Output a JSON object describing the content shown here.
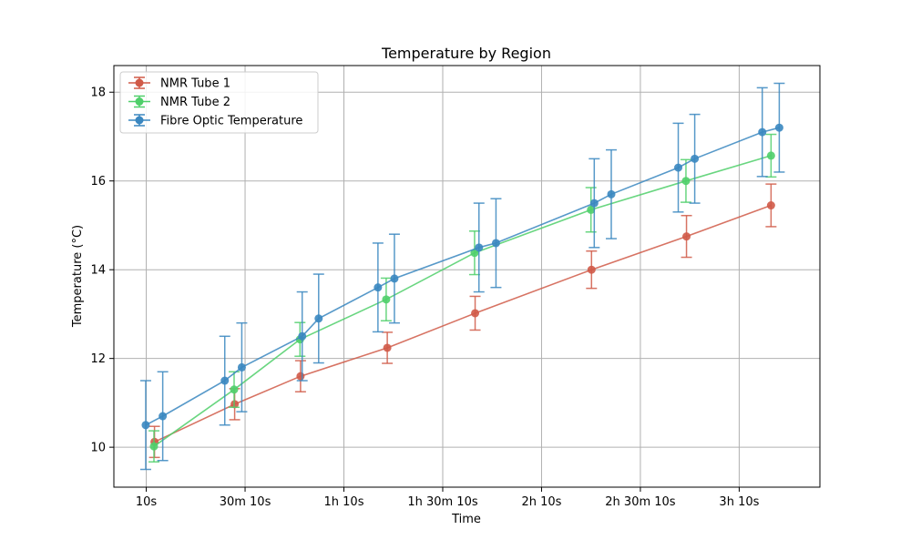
{
  "chart_data": {
    "type": "line",
    "title": "Temperature by Region",
    "xlabel": "Time",
    "ylabel": "Temperature (°C)",
    "x_ticks": [
      {
        "label": "10s",
        "t": 10
      },
      {
        "label": "30m 10s",
        "t": 1810
      },
      {
        "label": "1h 10s",
        "t": 3610
      },
      {
        "label": "1h 30m 10s",
        "t": 5410
      },
      {
        "label": "2h 10s",
        "t": 7210
      },
      {
        "label": "2h 30m 10s",
        "t": 9010
      },
      {
        "label": "3h 10s",
        "t": 10810
      }
    ],
    "y_ticks": [
      10,
      12,
      14,
      16,
      18
    ],
    "xlim": [
      -580,
      12280
    ],
    "ylim": [
      9.1,
      18.6
    ],
    "grid": true,
    "legend_position": "upper-left",
    "series": [
      {
        "name": "NMR Tube 1",
        "color": "#d05a48",
        "x": [
          160,
          1620,
          2820,
          4400,
          6000,
          8120,
          9850,
          11390
        ],
        "y": [
          10.12,
          10.97,
          11.6,
          12.24,
          13.02,
          14.0,
          14.75,
          15.45
        ],
        "err": [
          0.35,
          0.35,
          0.35,
          0.35,
          0.38,
          0.42,
          0.47,
          0.48
        ]
      },
      {
        "name": "NMR Tube 2",
        "color": "#4fcf6a",
        "x": [
          150,
          1610,
          2810,
          4380,
          5990,
          8110,
          9840,
          11390
        ],
        "y": [
          10.02,
          11.3,
          12.43,
          13.33,
          14.38,
          15.35,
          16.0,
          16.57
        ],
        "err": [
          0.35,
          0.4,
          0.38,
          0.48,
          0.49,
          0.5,
          0.48,
          0.48
        ]
      },
      {
        "name": "Fibre Optic Temperature",
        "color": "#3a87c0",
        "x": [
          0,
          310,
          1440,
          1750,
          2850,
          3150,
          4230,
          4530,
          6070,
          6380,
          8170,
          8480,
          9700,
          10000,
          11230,
          11540
        ],
        "y": [
          10.5,
          10.7,
          11.5,
          11.8,
          12.5,
          12.9,
          13.6,
          13.8,
          14.5,
          14.6,
          15.5,
          15.7,
          16.3,
          16.5,
          17.1,
          17.2
        ],
        "err": [
          1.0,
          1.0,
          1.0,
          1.0,
          1.0,
          1.0,
          1.0,
          1.0,
          1.0,
          1.0,
          1.0,
          1.0,
          1.0,
          1.0,
          1.0,
          1.0
        ]
      }
    ]
  }
}
